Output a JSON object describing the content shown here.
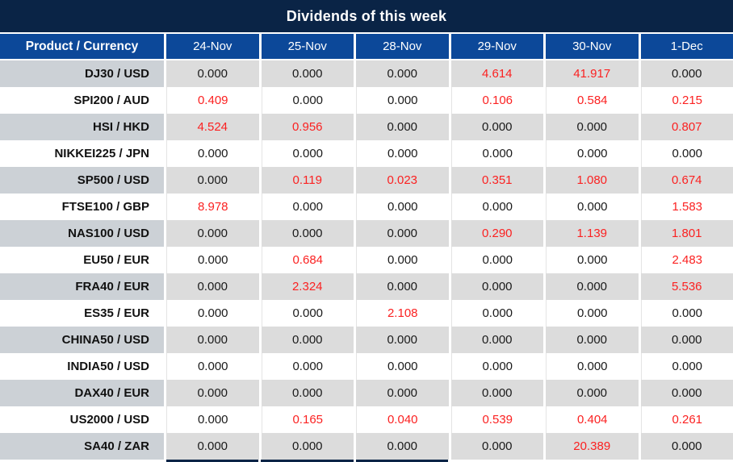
{
  "colors": {
    "title_bar_bg": "#0a2446",
    "title_text": "#ffffff",
    "header_bg": "#0c4899",
    "header_text": "#ffffff",
    "alt_product_bg": "#ccd1d6",
    "alt_data_bg": "#dcdcdc",
    "product_text": "#111111",
    "value_text": "#1a1a1a",
    "value_red": "#fb2121"
  },
  "chart_data": {
    "type": "table",
    "title": "Dividends of this week",
    "columns": [
      "Product / Currency",
      "24-Nov",
      "25-Nov",
      "28-Nov",
      "29-Nov",
      "30-Nov",
      "1-Dec"
    ],
    "highlight_rule": "non-zero dividend values are shown in red",
    "rows": [
      {
        "product": "DJ30 / USD",
        "values": [
          "0.000",
          "0.000",
          "0.000",
          "4.614",
          "41.917",
          "0.000"
        ]
      },
      {
        "product": "SPI200 / AUD",
        "values": [
          "0.409",
          "0.000",
          "0.000",
          "0.106",
          "0.584",
          "0.215"
        ]
      },
      {
        "product": "HSI / HKD",
        "values": [
          "4.524",
          "0.956",
          "0.000",
          "0.000",
          "0.000",
          "0.807"
        ]
      },
      {
        "product": "NIKKEI225 / JPN",
        "values": [
          "0.000",
          "0.000",
          "0.000",
          "0.000",
          "0.000",
          "0.000"
        ]
      },
      {
        "product": "SP500 / USD",
        "values": [
          "0.000",
          "0.119",
          "0.023",
          "0.351",
          "1.080",
          "0.674"
        ]
      },
      {
        "product": "FTSE100 / GBP",
        "values": [
          "8.978",
          "0.000",
          "0.000",
          "0.000",
          "0.000",
          "1.583"
        ]
      },
      {
        "product": "NAS100 / USD",
        "values": [
          "0.000",
          "0.000",
          "0.000",
          "0.290",
          "1.139",
          "1.801"
        ]
      },
      {
        "product": "EU50 / EUR",
        "values": [
          "0.000",
          "0.684",
          "0.000",
          "0.000",
          "0.000",
          "2.483"
        ]
      },
      {
        "product": "FRA40 / EUR",
        "values": [
          "0.000",
          "2.324",
          "0.000",
          "0.000",
          "0.000",
          "5.536"
        ]
      },
      {
        "product": "ES35 / EUR",
        "values": [
          "0.000",
          "0.000",
          "2.108",
          "0.000",
          "0.000",
          "0.000"
        ]
      },
      {
        "product": "CHINA50 / USD",
        "values": [
          "0.000",
          "0.000",
          "0.000",
          "0.000",
          "0.000",
          "0.000"
        ]
      },
      {
        "product": "INDIA50 / USD",
        "values": [
          "0.000",
          "0.000",
          "0.000",
          "0.000",
          "0.000",
          "0.000"
        ]
      },
      {
        "product": "DAX40 / EUR",
        "values": [
          "0.000",
          "0.000",
          "0.000",
          "0.000",
          "0.000",
          "0.000"
        ]
      },
      {
        "product": "US2000 / USD",
        "values": [
          "0.000",
          "0.165",
          "0.040",
          "0.539",
          "0.404",
          "0.261"
        ]
      },
      {
        "product": "SA40 / ZAR",
        "values": [
          "0.000",
          "0.000",
          "0.000",
          "0.000",
          "20.389",
          "0.000"
        ]
      }
    ]
  }
}
